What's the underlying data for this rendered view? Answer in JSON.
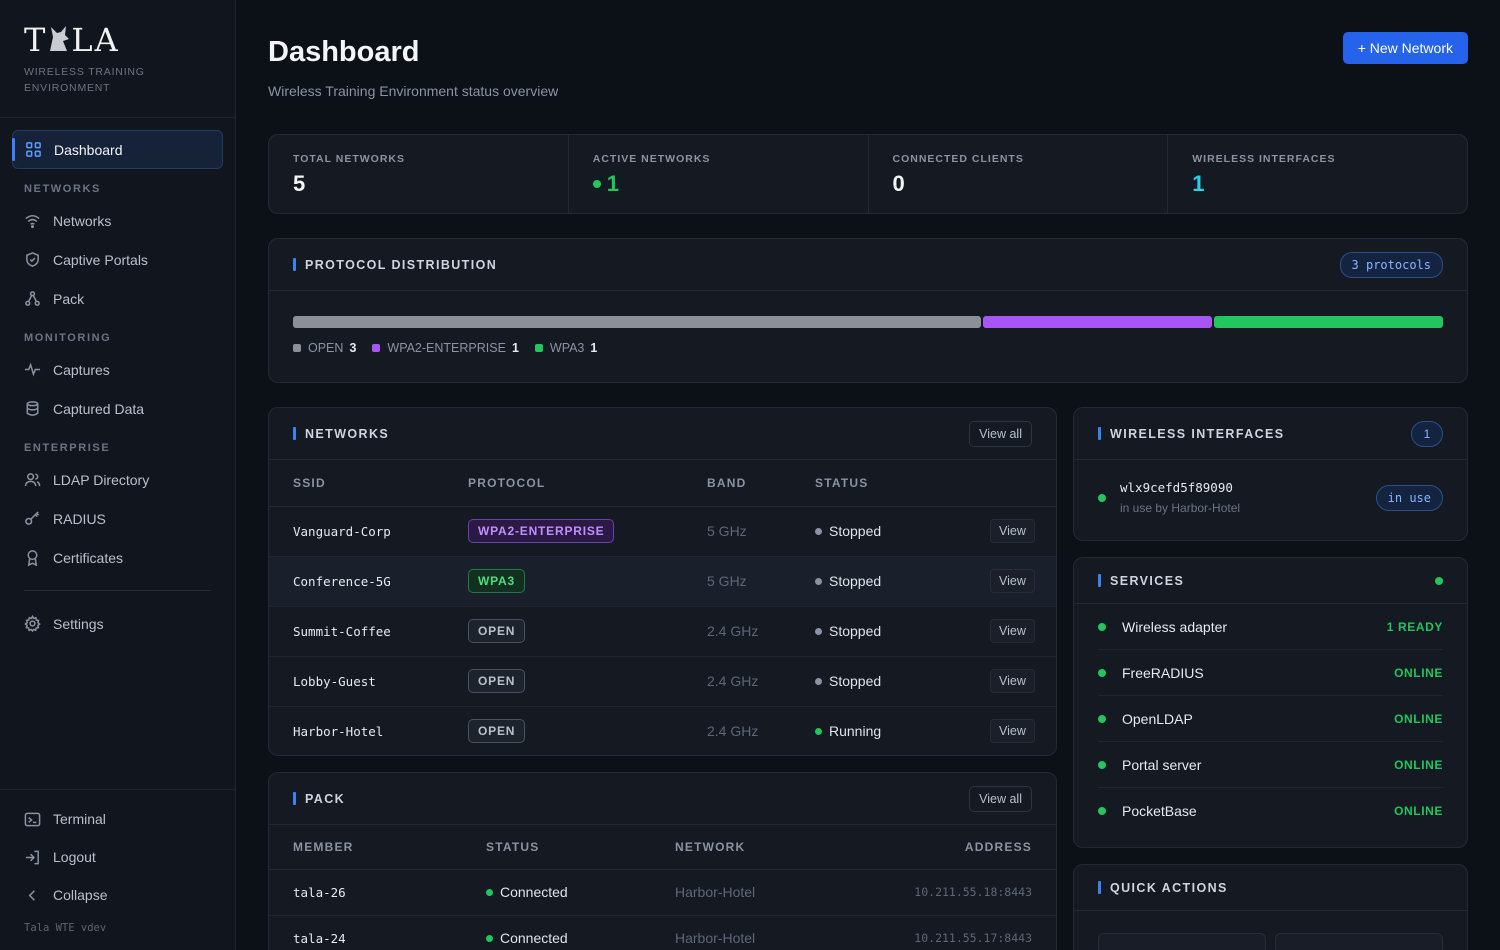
{
  "brand": {
    "name_pre": "T",
    "name_post": "LA",
    "subtitle": "WIRELESS TRAINING ENVIRONMENT"
  },
  "nav": {
    "dashboard": "Dashboard",
    "section_networks": "NETWORKS",
    "networks": "Networks",
    "captive_portals": "Captive Portals",
    "pack": "Pack",
    "section_monitoring": "MONITORING",
    "captures": "Captures",
    "captured_data": "Captured Data",
    "section_enterprise": "ENTERPRISE",
    "ldap": "LDAP Directory",
    "radius": "RADIUS",
    "certificates": "Certificates",
    "settings": "Settings",
    "terminal": "Terminal",
    "logout": "Logout",
    "collapse": "Collapse",
    "version": "Tala WTE vdev"
  },
  "header": {
    "title": "Dashboard",
    "subtitle": "Wireless Training Environment status overview",
    "new_network": "+ New Network"
  },
  "stats": [
    {
      "label": "TOTAL NETWORKS",
      "value": "5"
    },
    {
      "label": "ACTIVE NETWORKS",
      "value": "1"
    },
    {
      "label": "CONNECTED CLIENTS",
      "value": "0"
    },
    {
      "label": "WIRELESS INTERFACES",
      "value": "1"
    }
  ],
  "protocol": {
    "title": "PROTOCOL DISTRIBUTION",
    "badge": "3 protocols",
    "segments": [
      {
        "name": "OPEN",
        "count": 3,
        "color": "#8b8f98"
      },
      {
        "name": "WPA2-ENTERPRISE",
        "count": 1,
        "color": "#a855f7"
      },
      {
        "name": "WPA3",
        "count": 1,
        "color": "#22c55e"
      }
    ]
  },
  "networks": {
    "title": "NETWORKS",
    "view_all": "View all",
    "columns": {
      "ssid": "SSID",
      "protocol": "PROTOCOL",
      "band": "BAND",
      "status": "STATUS"
    },
    "rows": [
      {
        "ssid": "Vanguard-Corp",
        "protocol": "WPA2-ENTERPRISE",
        "band": "5 GHz",
        "status": "Stopped",
        "view": "View"
      },
      {
        "ssid": "Conference-5G",
        "protocol": "WPA3",
        "band": "5 GHz",
        "status": "Stopped",
        "view": "View"
      },
      {
        "ssid": "Summit-Coffee",
        "protocol": "OPEN",
        "band": "2.4 GHz",
        "status": "Stopped",
        "view": "View"
      },
      {
        "ssid": "Lobby-Guest",
        "protocol": "OPEN",
        "band": "2.4 GHz",
        "status": "Stopped",
        "view": "View"
      },
      {
        "ssid": "Harbor-Hotel",
        "protocol": "OPEN",
        "band": "2.4 GHz",
        "status": "Running",
        "view": "View"
      }
    ]
  },
  "pack": {
    "title": "PACK",
    "view_all": "View all",
    "columns": {
      "member": "MEMBER",
      "status": "STATUS",
      "network": "NETWORK",
      "address": "ADDRESS"
    },
    "rows": [
      {
        "member": "tala-26",
        "status": "Connected",
        "network": "Harbor-Hotel",
        "address": "10.211.55.18:8443"
      },
      {
        "member": "tala-24",
        "status": "Connected",
        "network": "Harbor-Hotel",
        "address": "10.211.55.17:8443"
      }
    ]
  },
  "wireless": {
    "title": "WIRELESS INTERFACES",
    "count": "1",
    "iface_name": "wlx9cefd5f89090",
    "iface_sub": "in use by Harbor-Hotel",
    "badge": "in use"
  },
  "services": {
    "title": "SERVICES",
    "items": [
      {
        "name": "Wireless adapter",
        "state": "1 READY"
      },
      {
        "name": "FreeRADIUS",
        "state": "ONLINE"
      },
      {
        "name": "OpenLDAP",
        "state": "ONLINE"
      },
      {
        "name": "Portal server",
        "state": "ONLINE"
      },
      {
        "name": "PocketBase",
        "state": "ONLINE"
      }
    ]
  },
  "quick_actions": {
    "title": "QUICK ACTIONS"
  }
}
